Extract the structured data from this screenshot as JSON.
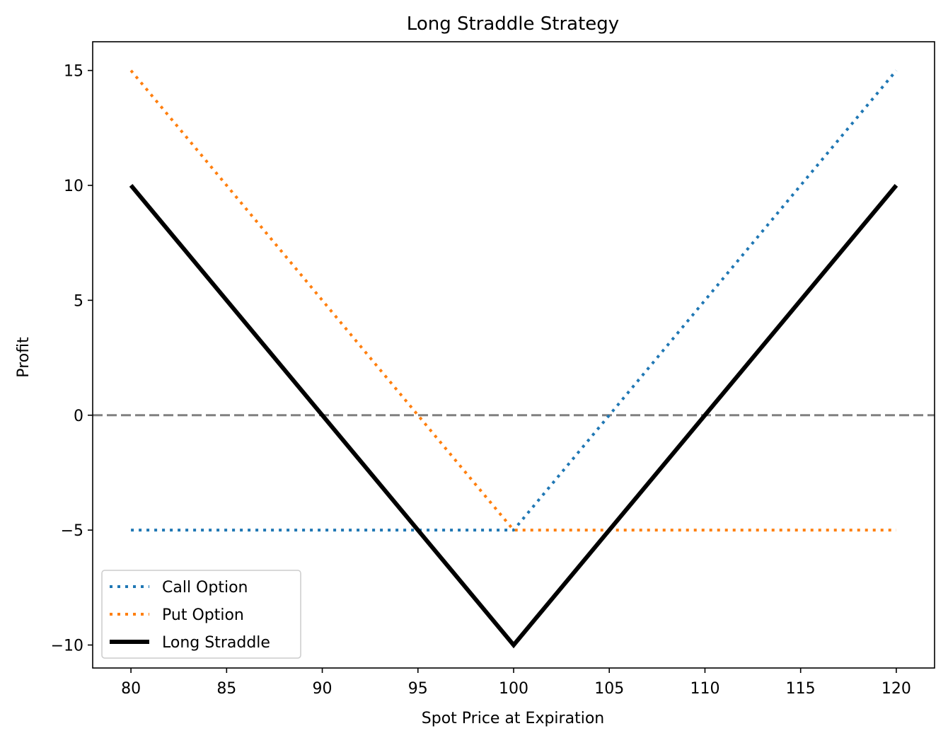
{
  "chart_data": {
    "type": "line",
    "title": "Long Straddle Strategy",
    "xlabel": "Spot Price at Expiration",
    "ylabel": "Profit",
    "xlim": [
      78,
      122
    ],
    "ylim": [
      -11,
      16.25
    ],
    "xticks": [
      80,
      85,
      90,
      95,
      100,
      105,
      110,
      115,
      120
    ],
    "yticks": [
      -10,
      -5,
      0,
      5,
      10,
      15
    ],
    "ytick_labels": [
      "−10",
      "−5",
      "0",
      "5",
      "10",
      "15"
    ],
    "grid": false,
    "legend_position": "lower-left",
    "reference_line": {
      "y": 0,
      "style": "dashed",
      "color": "#808080"
    },
    "series": [
      {
        "name": "Call Option",
        "style": "dotted",
        "color": "#1f77b4",
        "x": [
          80,
          100,
          120
        ],
        "y": [
          -5,
          -5,
          15
        ]
      },
      {
        "name": "Put Option",
        "style": "dotted",
        "color": "#ff7f0e",
        "x": [
          80,
          100,
          120
        ],
        "y": [
          15,
          -5,
          -5
        ]
      },
      {
        "name": "Long Straddle",
        "style": "solid",
        "color": "#000000",
        "x": [
          80,
          100,
          120
        ],
        "y": [
          10,
          -10,
          10
        ]
      }
    ]
  }
}
